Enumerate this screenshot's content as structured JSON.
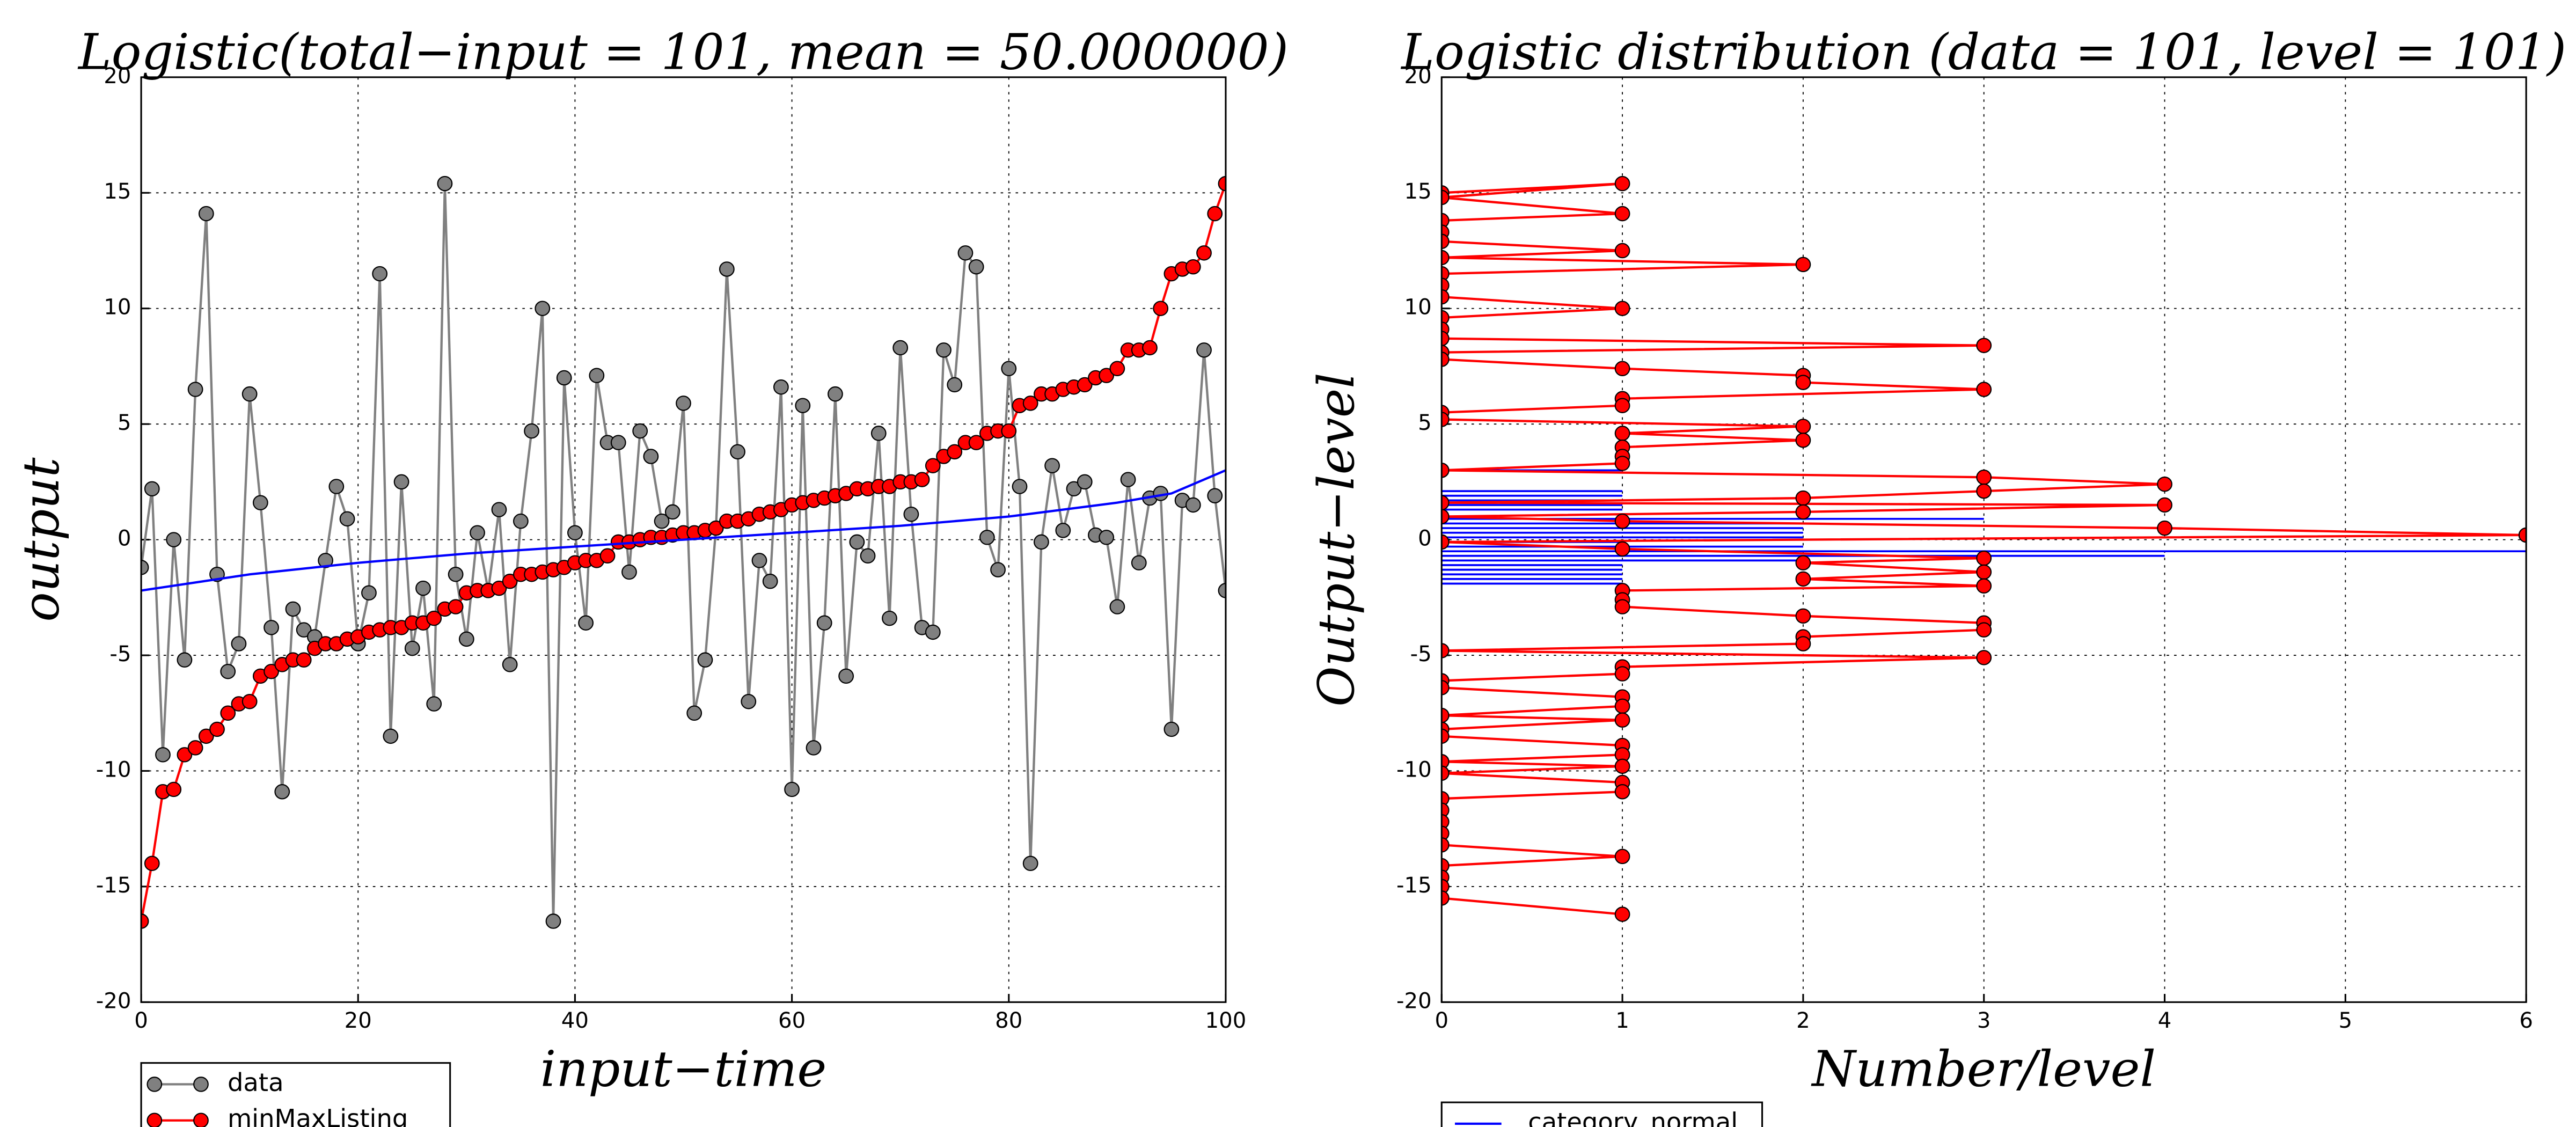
{
  "chart_data": [
    {
      "type": "line",
      "title": "Logistic(total−input = 101, mean = 50.000000)",
      "xlabel": "input−time",
      "ylabel": "output",
      "xlim": [
        0,
        100
      ],
      "xticks": [
        0,
        20,
        40,
        60,
        80,
        100
      ],
      "ylim": [
        -20,
        20
      ],
      "yticks": [
        -20,
        -15,
        -10,
        -5,
        0,
        5,
        10,
        15,
        20
      ],
      "grid": true,
      "legend": "below",
      "x": [
        0,
        1,
        2,
        3,
        4,
        5,
        6,
        7,
        8,
        9,
        10,
        11,
        12,
        13,
        14,
        15,
        16,
        17,
        18,
        19,
        20,
        21,
        22,
        23,
        24,
        25,
        26,
        27,
        28,
        29,
        30,
        31,
        32,
        33,
        34,
        35,
        36,
        37,
        38,
        39,
        40,
        41,
        42,
        43,
        44,
        45,
        46,
        47,
        48,
        49,
        50,
        51,
        52,
        53,
        54,
        55,
        56,
        57,
        58,
        59,
        60,
        61,
        62,
        63,
        64,
        65,
        66,
        67,
        68,
        69,
        70,
        71,
        72,
        73,
        74,
        75,
        76,
        77,
        78,
        79,
        80,
        81,
        82,
        83,
        84,
        85,
        86,
        87,
        88,
        89,
        90,
        91,
        92,
        93,
        94,
        95,
        96,
        97,
        98,
        99,
        100
      ],
      "series": [
        {
          "name": "data",
          "color": "#808080",
          "marker": true,
          "values": [
            -1.2,
            2.2,
            -9.3,
            0,
            -5.2,
            6.5,
            14.1,
            -1.5,
            -5.7,
            -4.5,
            6.3,
            1.6,
            -3.8,
            -10.9,
            -3.0,
            -3.9,
            -4.2,
            -0.9,
            2.3,
            0.9,
            -4.5,
            -2.3,
            11.5,
            -8.5,
            2.5,
            -4.7,
            -2.1,
            -7.1,
            15.4,
            -1.5,
            -4.3,
            0.3,
            -2.2,
            1.3,
            -5.4,
            0.8,
            4.7,
            10.0,
            -16.5,
            7.0,
            0.3,
            -3.6,
            7.1,
            4.2,
            4.2,
            -1.4,
            4.7,
            3.6,
            0.8,
            1.2,
            5.9,
            -7.5,
            -5.2,
            0.5,
            11.7,
            3.8,
            -7.0,
            -0.9,
            -1.8,
            6.6,
            -10.8,
            5.8,
            -9.0,
            -3.6,
            6.3,
            -5.9,
            -0.1,
            -0.7,
            4.6,
            -3.4,
            8.3,
            1.1,
            -3.8,
            -4.0,
            8.2,
            6.7,
            12.4,
            11.8,
            0.1,
            -1.3,
            7.4,
            2.3,
            -14.0,
            -0.1,
            3.2,
            0.4,
            2.2,
            2.5,
            0.2,
            0.1,
            -2.9,
            2.6,
            -1.0,
            1.8,
            2.0,
            -8.2,
            1.7,
            1.5,
            8.2,
            1.9,
            -2.2
          ]
        },
        {
          "name": "minMaxListing",
          "color": "#ff0000",
          "marker": true,
          "values": [
            -16.5,
            -14.0,
            -10.9,
            -10.8,
            -9.3,
            -9.0,
            -8.5,
            -8.2,
            -7.5,
            -7.1,
            -7.0,
            -5.9,
            -5.7,
            -5.4,
            -5.2,
            -5.2,
            -4.7,
            -4.5,
            -4.5,
            -4.3,
            -4.2,
            -4.0,
            -3.9,
            -3.8,
            -3.8,
            -3.6,
            -3.6,
            -3.4,
            -3.0,
            -2.9,
            -2.3,
            -2.2,
            -2.2,
            -2.1,
            -1.8,
            -1.5,
            -1.5,
            -1.4,
            -1.3,
            -1.2,
            -1.0,
            -0.9,
            -0.9,
            -0.7,
            -0.1,
            -0.1,
            0,
            0.1,
            0.1,
            0.2,
            0.3,
            0.3,
            0.4,
            0.5,
            0.8,
            0.8,
            0.9,
            1.1,
            1.2,
            1.3,
            1.5,
            1.6,
            1.7,
            1.8,
            1.9,
            2.0,
            2.2,
            2.2,
            2.3,
            2.3,
            2.5,
            2.5,
            2.6,
            3.2,
            3.6,
            3.8,
            4.2,
            4.2,
            4.6,
            4.7,
            4.7,
            5.8,
            5.9,
            6.3,
            6.3,
            6.5,
            6.6,
            6.7,
            7.0,
            7.1,
            7.4,
            8.2,
            8.2,
            8.3,
            10.0,
            11.5,
            11.7,
            11.8,
            12.4,
            14.1,
            15.4
          ]
        },
        {
          "color": "#0000ff",
          "x": [
            0,
            10,
            20,
            30,
            40,
            50,
            60,
            70,
            80,
            90,
            95,
            100
          ],
          "values": [
            -2.2,
            -1.5,
            -1.0,
            -0.6,
            -0.3,
            0,
            0.3,
            0.6,
            1.0,
            1.6,
            2.0,
            3.0
          ]
        }
      ]
    },
    {
      "type": "line",
      "title": "Logistic distribution (data = 101, level = 101)",
      "xlabel": "Number/level",
      "ylabel": "Output−level",
      "xlim": [
        0,
        6
      ],
      "xticks": [
        0,
        1,
        2,
        3,
        4,
        5,
        6
      ],
      "ylim": [
        -20,
        20
      ],
      "yticks": [
        -20,
        -15,
        -10,
        -5,
        0,
        5,
        10,
        15,
        20
      ],
      "grid": true,
      "legend": "below",
      "series": [
        {
          "name": "category_normal",
          "color": "#0000ff",
          "style": "hlines",
          "x": [
            1,
            1,
            1,
            1,
            1,
            1,
            3,
            2,
            2,
            2,
            2,
            1,
            2,
            6,
            4,
            2,
            1,
            1,
            1,
            1,
            1
          ],
          "values": [
            3.0,
            2.1,
            1.9,
            1.7,
            1.5,
            1.3,
            0.9,
            0.7,
            0.5,
            0.3,
            0.1,
            -0.1,
            -0.3,
            -0.5,
            -0.7,
            -0.9,
            -1.1,
            -1.3,
            -1.5,
            -1.7,
            -1.9
          ]
        },
        {
          "color": "#ff0000",
          "marker": true,
          "x": [
            0,
            1,
            0,
            1,
            0,
            0,
            0,
            1,
            0,
            2,
            0,
            0,
            0,
            1,
            0,
            0,
            0,
            3,
            0,
            0,
            1,
            2,
            2,
            3,
            1,
            1,
            0,
            0,
            2,
            1,
            2,
            1,
            1,
            1,
            0,
            3,
            4,
            3,
            2,
            0,
            4,
            2,
            0,
            1,
            4,
            6,
            0,
            1,
            3,
            2,
            3,
            2,
            3,
            1,
            1,
            1,
            2,
            3,
            3,
            2,
            2,
            0,
            3,
            1,
            1,
            0,
            0,
            1,
            1,
            0,
            1,
            0,
            0,
            1,
            1,
            0,
            1,
            0,
            1,
            1,
            0,
            0,
            0,
            0,
            0,
            1,
            0,
            0,
            0,
            0,
            1
          ],
          "values": [
            15.0,
            15.4,
            14.8,
            14.1,
            13.8,
            13.3,
            12.9,
            12.5,
            12.2,
            11.9,
            11.5,
            11.0,
            10.5,
            10.0,
            9.6,
            9.1,
            8.7,
            8.4,
            8.1,
            7.8,
            7.4,
            7.1,
            6.8,
            6.5,
            6.1,
            5.8,
            5.5,
            5.2,
            4.9,
            4.6,
            4.3,
            4.0,
            3.6,
            3.3,
            3.0,
            2.7,
            2.4,
            2.1,
            1.8,
            1.6,
            1.5,
            1.2,
            1.0,
            0.8,
            0.5,
            0.2,
            -0.1,
            -0.4,
            -0.8,
            -1.0,
            -1.4,
            -1.7,
            -2.0,
            -2.2,
            -2.6,
            -2.9,
            -3.3,
            -3.6,
            -3.9,
            -4.2,
            -4.5,
            -4.8,
            -5.1,
            -5.5,
            -5.8,
            -6.1,
            -6.4,
            -6.8,
            -7.2,
            -7.6,
            -7.8,
            -8.2,
            -8.5,
            -8.9,
            -9.3,
            -9.6,
            -9.8,
            -10.1,
            -10.5,
            -10.9,
            -11.2,
            -11.7,
            -12.2,
            -12.7,
            -13.2,
            -13.7,
            -14.1,
            -14.6,
            -15.0,
            -15.5,
            -16.2
          ]
        }
      ]
    }
  ]
}
